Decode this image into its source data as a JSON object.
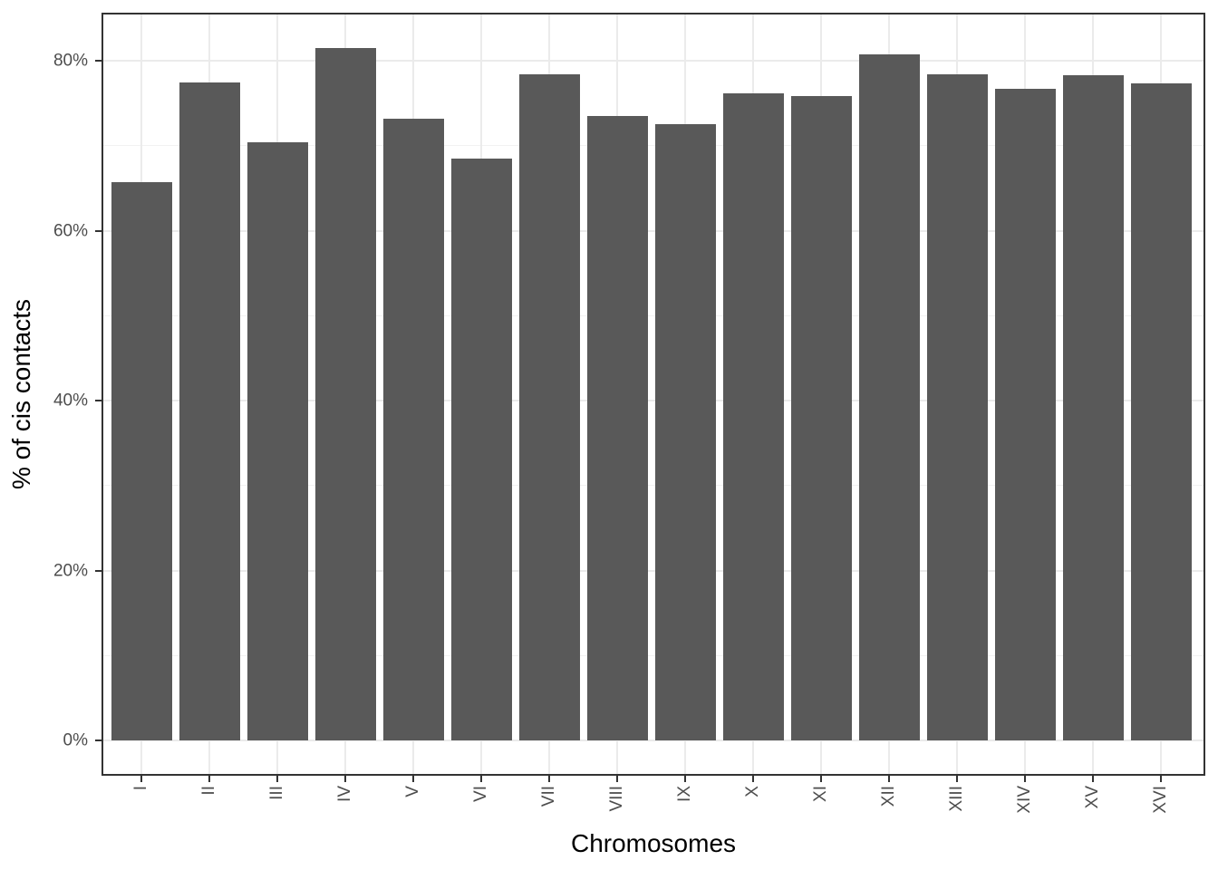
{
  "chart_data": {
    "type": "bar",
    "title": "",
    "categories": [
      "I",
      "II",
      "III",
      "IV",
      "V",
      "VI",
      "VII",
      "VIII",
      "IX",
      "X",
      "XI",
      "XII",
      "XIII",
      "XIV",
      "XV",
      "XVI"
    ],
    "values": [
      65.7,
      77.4,
      70.4,
      81.5,
      73.2,
      68.5,
      78.4,
      73.5,
      72.5,
      76.2,
      75.8,
      80.8,
      78.4,
      76.7,
      78.3,
      77.3
    ],
    "xlabel": "Chromosomes",
    "ylabel": "% of cis contacts",
    "y_ticks": [
      {
        "value": 0,
        "label": "0%"
      },
      {
        "value": 20,
        "label": "20%"
      },
      {
        "value": 40,
        "label": "40%"
      },
      {
        "value": 60,
        "label": "60%"
      },
      {
        "value": 80,
        "label": "80%"
      }
    ],
    "y_minor_ticks": [
      10,
      30,
      50,
      70
    ],
    "ylim": [
      0,
      85.7
    ],
    "grid": "major-and-minor",
    "legend_position": "none",
    "colors": {
      "bar": "#595959",
      "grid_major": "#ebebeb",
      "grid_minor": "#f2f2f2",
      "panel_border": "#333333",
      "tick_mark": "#333333",
      "tick_label": "#4d4d4d",
      "axis_title": "#000000",
      "background": "#ffffff"
    }
  }
}
